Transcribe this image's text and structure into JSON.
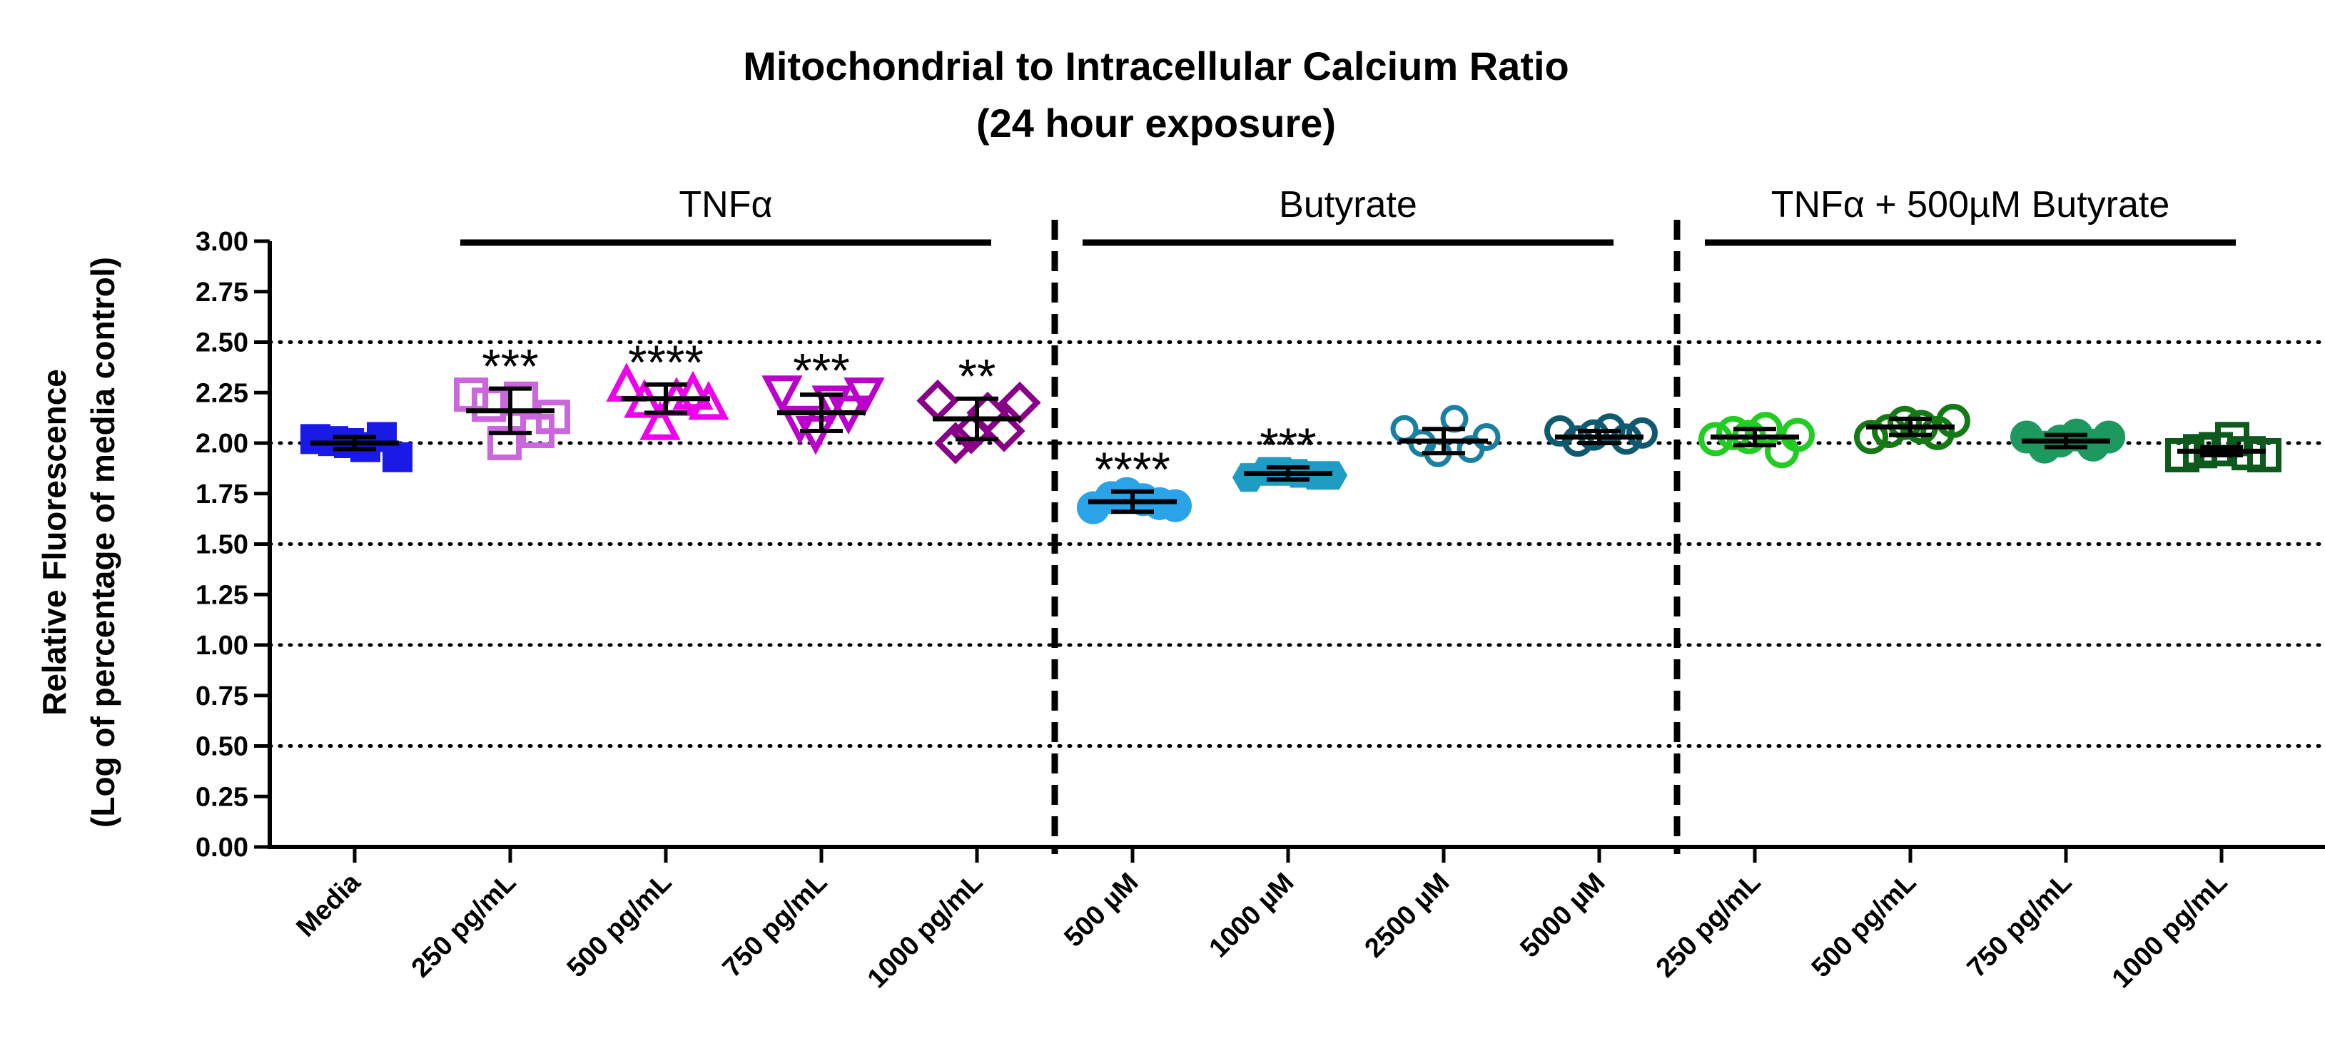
{
  "chart_data": {
    "type": "scatter",
    "title": "Mitochondrial to Intracellular Calcium Ratio",
    "subtitle": "(24 hour exposure)",
    "ylabel": [
      "Relative Fluorescence",
      "(Log of percentage of media control)"
    ],
    "xlabel": "",
    "ylim": [
      0,
      3
    ],
    "yticks": [
      "0.00",
      "0.25",
      "0.50",
      "0.75",
      "1.00",
      "1.25",
      "1.50",
      "1.75",
      "2.00",
      "2.25",
      "2.50",
      "2.75",
      "3.00"
    ],
    "reference_lines": [
      0.5,
      1.0,
      1.5,
      2.0,
      2.5
    ],
    "groups": [
      {
        "label": "TNFα",
        "from": 1,
        "to": 4
      },
      {
        "label": "Butyrate",
        "from": 5,
        "to": 8
      },
      {
        "label": "TNFα + 500µM Butyrate",
        "from": 9,
        "to": 12
      }
    ],
    "group_dividers_after": [
      4,
      8
    ],
    "series": [
      {
        "name": "Media",
        "color": "#1a1ae6",
        "marker": "square-filled",
        "mean": 2.0,
        "sd": 0.03,
        "points": [
          2.02,
          2.01,
          2.0,
          1.98,
          2.03,
          1.93
        ],
        "sig": ""
      },
      {
        "name": "250 pg/mL",
        "color": "#cc66dd",
        "marker": "square-open",
        "mean": 2.16,
        "sd": 0.11,
        "points": [
          2.24,
          2.19,
          2.0,
          2.22,
          2.06,
          2.13
        ],
        "sig": "***"
      },
      {
        "name": "500 pg/mL",
        "color": "#ee00ee",
        "marker": "triangle-up-open",
        "mean": 2.22,
        "sd": 0.07,
        "points": [
          2.29,
          2.21,
          2.1,
          2.22,
          2.25,
          2.2
        ],
        "sig": "****"
      },
      {
        "name": "750 pg/mL",
        "color": "#bb00cc",
        "marker": "triangle-down-open",
        "mean": 2.15,
        "sd": 0.09,
        "points": [
          2.25,
          2.1,
          2.05,
          2.2,
          2.15,
          2.24
        ],
        "sig": "***"
      },
      {
        "name": "1000 pg/mL",
        "color": "#880088",
        "marker": "diamond-open",
        "mean": 2.12,
        "sd": 0.1,
        "points": [
          2.21,
          2.0,
          2.05,
          2.15,
          2.06,
          2.2
        ],
        "sig": "**"
      },
      {
        "name": "500 µM",
        "color": "#2aa3e8",
        "marker": "circle-filled",
        "mean": 1.71,
        "sd": 0.05,
        "points": [
          1.68,
          1.73,
          1.75,
          1.72,
          1.7,
          1.69
        ],
        "sig": "****"
      },
      {
        "name": "1000 µM",
        "color": "#1f9cc4",
        "marker": "hexagon-filled",
        "mean": 1.85,
        "sd": 0.03,
        "points": [
          1.83,
          1.86,
          1.86,
          1.85,
          1.84,
          1.84
        ],
        "sig": "***"
      },
      {
        "name": "2500 µM",
        "color": "#1a7fa0",
        "marker": "asterisk-circle",
        "mean": 2.01,
        "sd": 0.06,
        "points": [
          2.07,
          2.0,
          1.95,
          2.12,
          1.97,
          2.03
        ],
        "sig": ""
      },
      {
        "name": "5000 µM",
        "color": "#105a70",
        "marker": "circle-open",
        "mean": 2.03,
        "sd": 0.03,
        "points": [
          2.06,
          2.01,
          2.04,
          2.07,
          2.02,
          2.05
        ],
        "sig": ""
      },
      {
        "name": "250 pg/mL",
        "color": "#22cc22",
        "marker": "circle-open-thick",
        "mean": 2.03,
        "sd": 0.04,
        "points": [
          2.02,
          2.05,
          2.03,
          2.07,
          1.96,
          2.04
        ],
        "sig": ""
      },
      {
        "name": "500 pg/mL",
        "color": "#157a15",
        "marker": "circle-open-thick",
        "mean": 2.08,
        "sd": 0.04,
        "points": [
          2.03,
          2.06,
          2.1,
          2.08,
          2.05,
          2.11
        ],
        "sig": ""
      },
      {
        "name": "750 pg/mL",
        "color": "#1d9960",
        "marker": "circle-filled",
        "mean": 2.01,
        "sd": 0.03,
        "points": [
          2.03,
          1.98,
          2.01,
          2.04,
          1.99,
          2.03
        ],
        "sig": ""
      },
      {
        "name": "1000 pg/mL",
        "color": "#0e5a1e",
        "marker": "square-open-thick",
        "mean": 1.96,
        "sd": 0.02,
        "points": [
          1.94,
          1.96,
          1.97,
          2.02,
          1.95,
          1.94
        ],
        "sig": ""
      }
    ]
  }
}
